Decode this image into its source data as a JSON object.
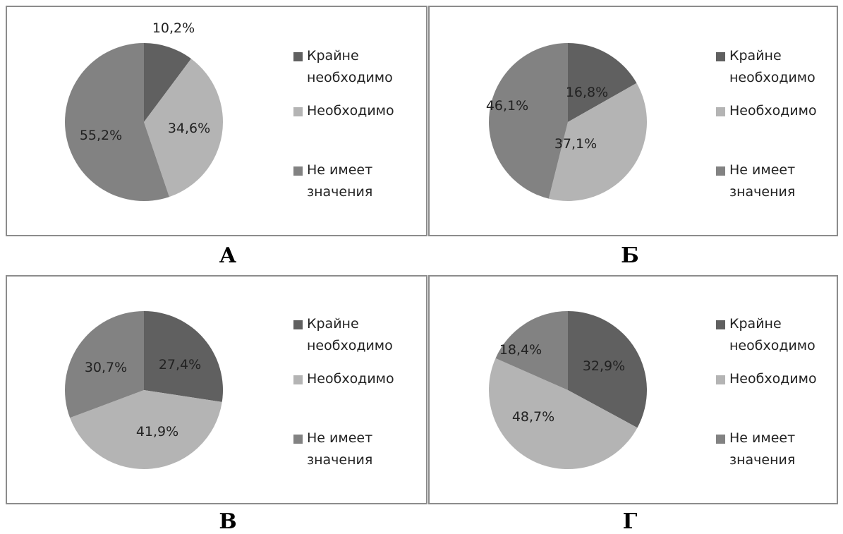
{
  "colors": {
    "very_necessary": "#606060",
    "necessary": "#b4b4b4",
    "no_matter": "#828282"
  },
  "legend": [
    "Крайне\nнеобходимо",
    "Необходимо",
    "Не имеет\nзначения"
  ],
  "chart_data": [
    {
      "type": "pie",
      "caption": "А",
      "categories": [
        "Крайне необходимо",
        "Необходимо",
        "Не имеет значения"
      ],
      "values": [
        10.2,
        34.6,
        55.2
      ],
      "labels": [
        "10,2%",
        "34,6%",
        "55,2%"
      ]
    },
    {
      "type": "pie",
      "caption": "Б",
      "categories": [
        "Крайне необходимо",
        "Необходимо",
        "Не имеет значения"
      ],
      "values": [
        16.8,
        37.1,
        46.1
      ],
      "labels": [
        "16,8%",
        "37,1%",
        "46,1%"
      ]
    },
    {
      "type": "pie",
      "caption": "В",
      "categories": [
        "Крайне необходимо",
        "Необходимо",
        "Не имеет значения"
      ],
      "values": [
        27.4,
        41.9,
        30.7
      ],
      "labels": [
        "27,4%",
        "41,9%",
        "30,7%"
      ]
    },
    {
      "type": "pie",
      "caption": "Г",
      "categories": [
        "Крайне необходимо",
        "Необходимо",
        "Не имеет значения"
      ],
      "values": [
        32.9,
        48.7,
        18.4
      ],
      "labels": [
        "32,9%",
        "48,7%",
        "18,4%"
      ]
    }
  ]
}
